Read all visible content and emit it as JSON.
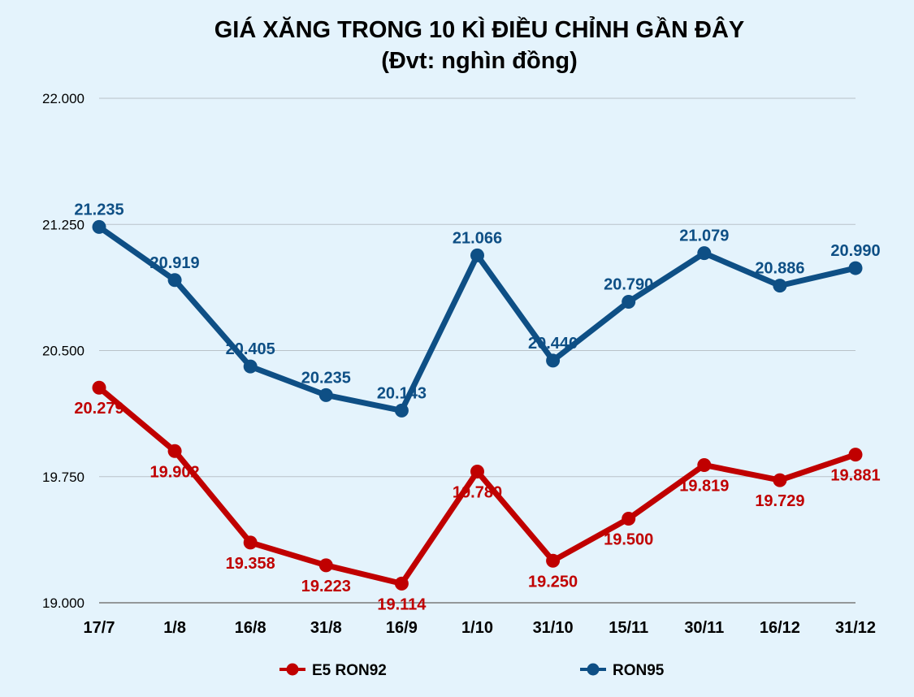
{
  "chart_data": {
    "type": "line",
    "title": "GIÁ XĂNG TRONG 10 KÌ ĐIỀU CHỈNH GẦN ĐÂY",
    "subtitle": "(Đvt: nghìn đồng)",
    "categories": [
      "17/7",
      "1/8",
      "16/8",
      "31/8",
      "16/9",
      "1/10",
      "31/10",
      "15/11",
      "30/11",
      "16/12",
      "31/12"
    ],
    "y_ticks": [
      "22.000",
      "21.250",
      "20.500",
      "19.750",
      "19.000"
    ],
    "ylim": [
      19.0,
      22.0
    ],
    "grid": true,
    "legend_position": "bottom",
    "series": [
      {
        "name": "E5 RON92",
        "color": "#c00000",
        "values": [
          20.279,
          19.902,
          19.358,
          19.223,
          19.114,
          19.78,
          19.25,
          19.5,
          19.819,
          19.729,
          19.881
        ],
        "labels": [
          "20.279",
          "19.902",
          "19.358",
          "19.223",
          "19.114",
          "19.780",
          "19.250",
          "19.500",
          "19.819",
          "19.729",
          "19.881"
        ]
      },
      {
        "name": "RON95",
        "color": "#0e4f85",
        "values": [
          21.235,
          20.919,
          20.405,
          20.235,
          20.143,
          21.066,
          20.44,
          20.79,
          21.079,
          20.886,
          20.99
        ],
        "labels": [
          "21.235",
          "20.919",
          "20.405",
          "20.235",
          "20.143",
          "21.066",
          "20.440",
          "20.790",
          "21.079",
          "20.886",
          "20.990"
        ]
      }
    ]
  }
}
